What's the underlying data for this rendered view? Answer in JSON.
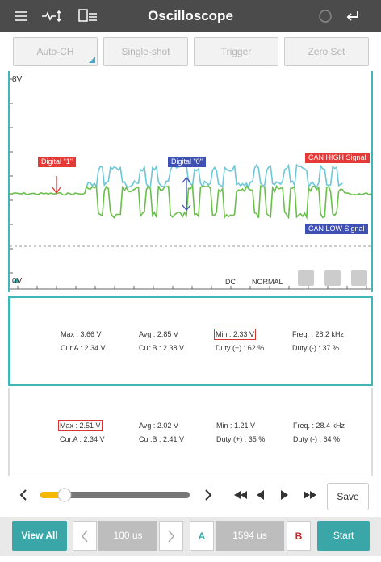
{
  "header": {
    "title": "Oscilloscope"
  },
  "toolbar": {
    "buttons": [
      "Auto-CH",
      "Single-shot",
      "Trigger",
      "Zero Set"
    ]
  },
  "scope": {
    "top_label": "8V",
    "bottom_label": "0V",
    "digital_1": "Digital \"1\"",
    "digital_0": "Digital \"0\"",
    "can_high": "CAN HIGH Signal",
    "can_low": "CAN LOW Signal",
    "coupling": "DC",
    "mode": "NORMAL"
  },
  "measurements": [
    {
      "rows": [
        [
          "Max : 3.66 V",
          "Avg : 2.85 V",
          "Min : 2.33 V",
          "Freq. : 28.2 kHz"
        ],
        [
          "Cur.A : 2.34 V",
          "Cur.B : 2.38 V",
          "Duty (+) : 62 %",
          "Duty (-) : 37 %"
        ]
      ]
    },
    {
      "rows": [
        [
          "Max : 2.51 V",
          "Avg : 2.02 V",
          "Min : 1.21 V",
          "Freq. : 28.4 kHz"
        ],
        [
          "Cur.A : 2.34 V",
          "Cur.B : 2.41 V",
          "Duty (+) : 35 %",
          "Duty (-) : 64 %"
        ]
      ]
    }
  ],
  "controls": {
    "save": "Save"
  },
  "footer": {
    "view_all": "View All",
    "time_scale": "100 us",
    "cursor_a": "A",
    "cursor_position": "1594 us",
    "cursor_b": "B",
    "start": "Start"
  }
}
